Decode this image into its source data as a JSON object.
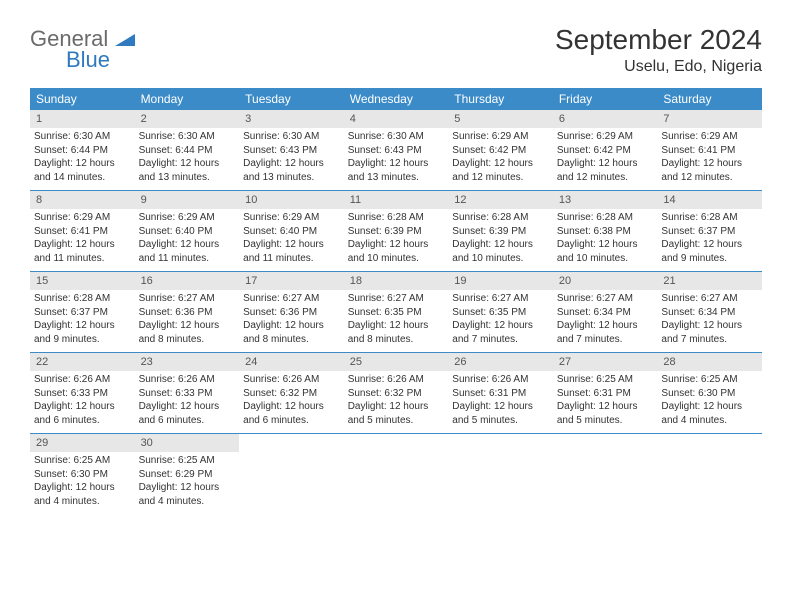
{
  "brand": {
    "line1": "General",
    "line2": "Blue"
  },
  "title": "September 2024",
  "location": "Uselu, Edo, Nigeria",
  "colors": {
    "header_bg": "#3b8bc9",
    "header_text": "#ffffff",
    "daynum_bg": "#e7e7e7",
    "week_border": "#3b8bc9",
    "logo_general": "#6b6b6b",
    "logo_blue": "#2f7abf",
    "text": "#333333",
    "page_bg": "#ffffff"
  },
  "weekdays": [
    "Sunday",
    "Monday",
    "Tuesday",
    "Wednesday",
    "Thursday",
    "Friday",
    "Saturday"
  ],
  "days": [
    {
      "n": 1,
      "sunrise": "6:30 AM",
      "sunset": "6:44 PM",
      "daylight": "12 hours and 14 minutes."
    },
    {
      "n": 2,
      "sunrise": "6:30 AM",
      "sunset": "6:44 PM",
      "daylight": "12 hours and 13 minutes."
    },
    {
      "n": 3,
      "sunrise": "6:30 AM",
      "sunset": "6:43 PM",
      "daylight": "12 hours and 13 minutes."
    },
    {
      "n": 4,
      "sunrise": "6:30 AM",
      "sunset": "6:43 PM",
      "daylight": "12 hours and 13 minutes."
    },
    {
      "n": 5,
      "sunrise": "6:29 AM",
      "sunset": "6:42 PM",
      "daylight": "12 hours and 12 minutes."
    },
    {
      "n": 6,
      "sunrise": "6:29 AM",
      "sunset": "6:42 PM",
      "daylight": "12 hours and 12 minutes."
    },
    {
      "n": 7,
      "sunrise": "6:29 AM",
      "sunset": "6:41 PM",
      "daylight": "12 hours and 12 minutes."
    },
    {
      "n": 8,
      "sunrise": "6:29 AM",
      "sunset": "6:41 PM",
      "daylight": "12 hours and 11 minutes."
    },
    {
      "n": 9,
      "sunrise": "6:29 AM",
      "sunset": "6:40 PM",
      "daylight": "12 hours and 11 minutes."
    },
    {
      "n": 10,
      "sunrise": "6:29 AM",
      "sunset": "6:40 PM",
      "daylight": "12 hours and 11 minutes."
    },
    {
      "n": 11,
      "sunrise": "6:28 AM",
      "sunset": "6:39 PM",
      "daylight": "12 hours and 10 minutes."
    },
    {
      "n": 12,
      "sunrise": "6:28 AM",
      "sunset": "6:39 PM",
      "daylight": "12 hours and 10 minutes."
    },
    {
      "n": 13,
      "sunrise": "6:28 AM",
      "sunset": "6:38 PM",
      "daylight": "12 hours and 10 minutes."
    },
    {
      "n": 14,
      "sunrise": "6:28 AM",
      "sunset": "6:37 PM",
      "daylight": "12 hours and 9 minutes."
    },
    {
      "n": 15,
      "sunrise": "6:28 AM",
      "sunset": "6:37 PM",
      "daylight": "12 hours and 9 minutes."
    },
    {
      "n": 16,
      "sunrise": "6:27 AM",
      "sunset": "6:36 PM",
      "daylight": "12 hours and 8 minutes."
    },
    {
      "n": 17,
      "sunrise": "6:27 AM",
      "sunset": "6:36 PM",
      "daylight": "12 hours and 8 minutes."
    },
    {
      "n": 18,
      "sunrise": "6:27 AM",
      "sunset": "6:35 PM",
      "daylight": "12 hours and 8 minutes."
    },
    {
      "n": 19,
      "sunrise": "6:27 AM",
      "sunset": "6:35 PM",
      "daylight": "12 hours and 7 minutes."
    },
    {
      "n": 20,
      "sunrise": "6:27 AM",
      "sunset": "6:34 PM",
      "daylight": "12 hours and 7 minutes."
    },
    {
      "n": 21,
      "sunrise": "6:27 AM",
      "sunset": "6:34 PM",
      "daylight": "12 hours and 7 minutes."
    },
    {
      "n": 22,
      "sunrise": "6:26 AM",
      "sunset": "6:33 PM",
      "daylight": "12 hours and 6 minutes."
    },
    {
      "n": 23,
      "sunrise": "6:26 AM",
      "sunset": "6:33 PM",
      "daylight": "12 hours and 6 minutes."
    },
    {
      "n": 24,
      "sunrise": "6:26 AM",
      "sunset": "6:32 PM",
      "daylight": "12 hours and 6 minutes."
    },
    {
      "n": 25,
      "sunrise": "6:26 AM",
      "sunset": "6:32 PM",
      "daylight": "12 hours and 5 minutes."
    },
    {
      "n": 26,
      "sunrise": "6:26 AM",
      "sunset": "6:31 PM",
      "daylight": "12 hours and 5 minutes."
    },
    {
      "n": 27,
      "sunrise": "6:25 AM",
      "sunset": "6:31 PM",
      "daylight": "12 hours and 5 minutes."
    },
    {
      "n": 28,
      "sunrise": "6:25 AM",
      "sunset": "6:30 PM",
      "daylight": "12 hours and 4 minutes."
    },
    {
      "n": 29,
      "sunrise": "6:25 AM",
      "sunset": "6:30 PM",
      "daylight": "12 hours and 4 minutes."
    },
    {
      "n": 30,
      "sunrise": "6:25 AM",
      "sunset": "6:29 PM",
      "daylight": "12 hours and 4 minutes."
    }
  ],
  "labels": {
    "sunrise_prefix": "Sunrise: ",
    "sunset_prefix": "Sunset: ",
    "daylight_prefix": "Daylight: "
  },
  "layout": {
    "start_weekday": 0,
    "total_cells": 35,
    "columns": 7
  }
}
